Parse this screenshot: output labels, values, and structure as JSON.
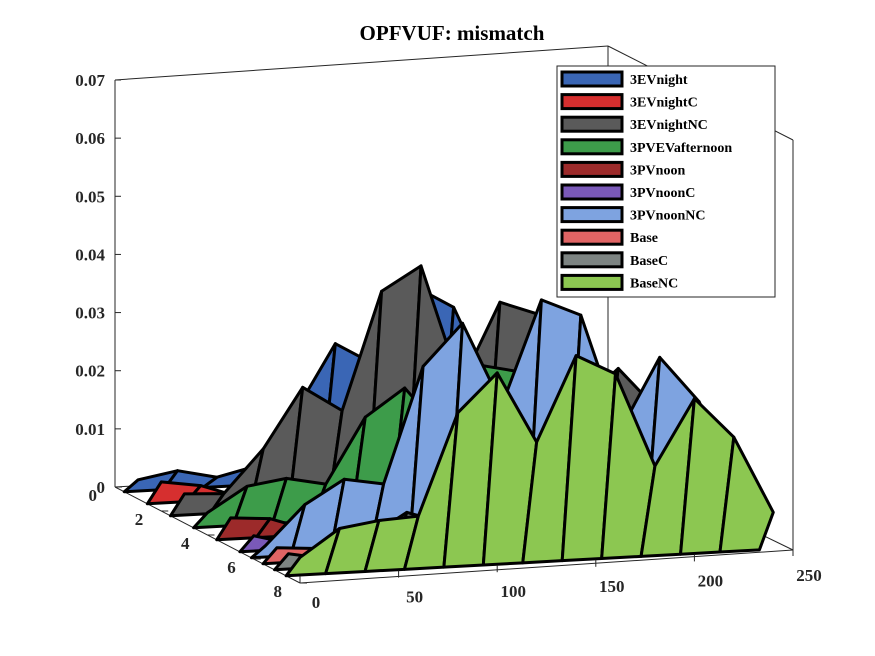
{
  "chart_data": {
    "type": "surface3d",
    "title": "OPFVUF: mismatch",
    "xlabel": "",
    "ylabel": "",
    "zlabel": "",
    "x_ticks": [
      "0",
      "50",
      "100",
      "150",
      "200",
      "250"
    ],
    "y_ticks": [
      "0",
      "2",
      "4",
      "6",
      "8"
    ],
    "z_ticks": [
      "0",
      "0.01",
      "0.02",
      "0.03",
      "0.04",
      "0.05",
      "0.06",
      "0.07"
    ],
    "xlim": [
      0,
      250
    ],
    "ylim": [
      0,
      8
    ],
    "zlim": [
      0,
      0.07
    ],
    "legend_position": "top-right",
    "series": [
      {
        "name": "3EVnight",
        "color": "#3a66b5",
        "y": 1,
        "peaks": [
          [
            0,
            0.006
          ],
          [
            40,
            0.003
          ],
          [
            85,
            0.015
          ],
          [
            120,
            0.038
          ],
          [
            160,
            0.03
          ],
          [
            200,
            0.025
          ],
          [
            240,
            0.012
          ]
        ]
      },
      {
        "name": "3EVnightC",
        "color": "#d62f2f",
        "y": 2,
        "peaks": [
          [
            0,
            0.005
          ],
          [
            40,
            0.003
          ],
          [
            85,
            0.012
          ],
          [
            120,
            0.02
          ],
          [
            160,
            0.018
          ],
          [
            200,
            0.015
          ],
          [
            240,
            0.01
          ]
        ]
      },
      {
        "name": "3EVnightNC",
        "color": "#5a5a5a",
        "y": 3,
        "peaks": [
          [
            0,
            0.005
          ],
          [
            40,
            0.012
          ],
          [
            85,
            0.035
          ],
          [
            120,
            0.042
          ],
          [
            160,
            0.035
          ],
          [
            200,
            0.03
          ],
          [
            240,
            0.015
          ]
        ]
      },
      {
        "name": "3PVEVafternoon",
        "color": "#3d9c4a",
        "y": 4,
        "peaks": [
          [
            0,
            0.007
          ],
          [
            40,
            0.009
          ],
          [
            85,
            0.02
          ],
          [
            120,
            0.028
          ],
          [
            160,
            0.025
          ],
          [
            200,
            0.02
          ],
          [
            240,
            0.012
          ]
        ]
      },
      {
        "name": "3PVnoon",
        "color": "#9c2a2a",
        "y": 5,
        "peaks": [
          [
            0,
            0.005
          ],
          [
            40,
            0.004
          ],
          [
            85,
            0.01
          ],
          [
            120,
            0.015
          ],
          [
            160,
            0.014
          ],
          [
            200,
            0.012
          ],
          [
            240,
            0.008
          ]
        ]
      },
      {
        "name": "3PVnoonC",
        "color": "#7a59b8",
        "y": 6,
        "peaks": [
          [
            0,
            0.004
          ],
          [
            40,
            0.004
          ],
          [
            85,
            0.009
          ],
          [
            120,
            0.013
          ],
          [
            160,
            0.012
          ],
          [
            200,
            0.01
          ],
          [
            240,
            0.007
          ]
        ]
      },
      {
        "name": "3PVnoonNC",
        "color": "#7ea3e0",
        "y": 6.5,
        "peaks": [
          [
            0,
            0.006
          ],
          [
            40,
            0.014
          ],
          [
            85,
            0.035
          ],
          [
            120,
            0.046
          ],
          [
            160,
            0.04
          ],
          [
            200,
            0.032
          ],
          [
            240,
            0.016
          ]
        ]
      },
      {
        "name": "Base",
        "color": "#e06464",
        "y": 7,
        "peaks": [
          [
            0,
            0.004
          ],
          [
            40,
            0.003
          ],
          [
            85,
            0.008
          ],
          [
            120,
            0.012
          ],
          [
            160,
            0.011
          ],
          [
            200,
            0.009
          ],
          [
            240,
            0.006
          ]
        ]
      },
      {
        "name": "BaseC",
        "color": "#7d8482",
        "y": 7.5,
        "peaks": [
          [
            0,
            0.004
          ],
          [
            40,
            0.006
          ],
          [
            85,
            0.015
          ],
          [
            120,
            0.02
          ],
          [
            160,
            0.018
          ],
          [
            200,
            0.015
          ],
          [
            240,
            0.01
          ]
        ]
      },
      {
        "name": "BaseNC",
        "color": "#8cc751",
        "y": 8,
        "peaks": [
          [
            0,
            0.008
          ],
          [
            40,
            0.01
          ],
          [
            85,
            0.03
          ],
          [
            120,
            0.04
          ],
          [
            160,
            0.033
          ],
          [
            200,
            0.028
          ],
          [
            240,
            0.014
          ]
        ]
      }
    ]
  }
}
